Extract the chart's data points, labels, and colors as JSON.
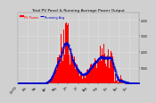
{
  "title": "Total PV Panel & Running Average Power Output",
  "bg_color": "#d0d0d0",
  "plot_bg": "#d0d0d0",
  "bar_color": "#ff0000",
  "avg_color": "#0000cc",
  "n_points": 400,
  "peak_value": 4000,
  "ylim": [
    0,
    4500
  ],
  "ytick_vals": [
    1000,
    2000,
    3000,
    4000
  ],
  "title_fontsize": 3.2,
  "tick_fontsize": 2.2,
  "legend_fontsize": 2.5
}
